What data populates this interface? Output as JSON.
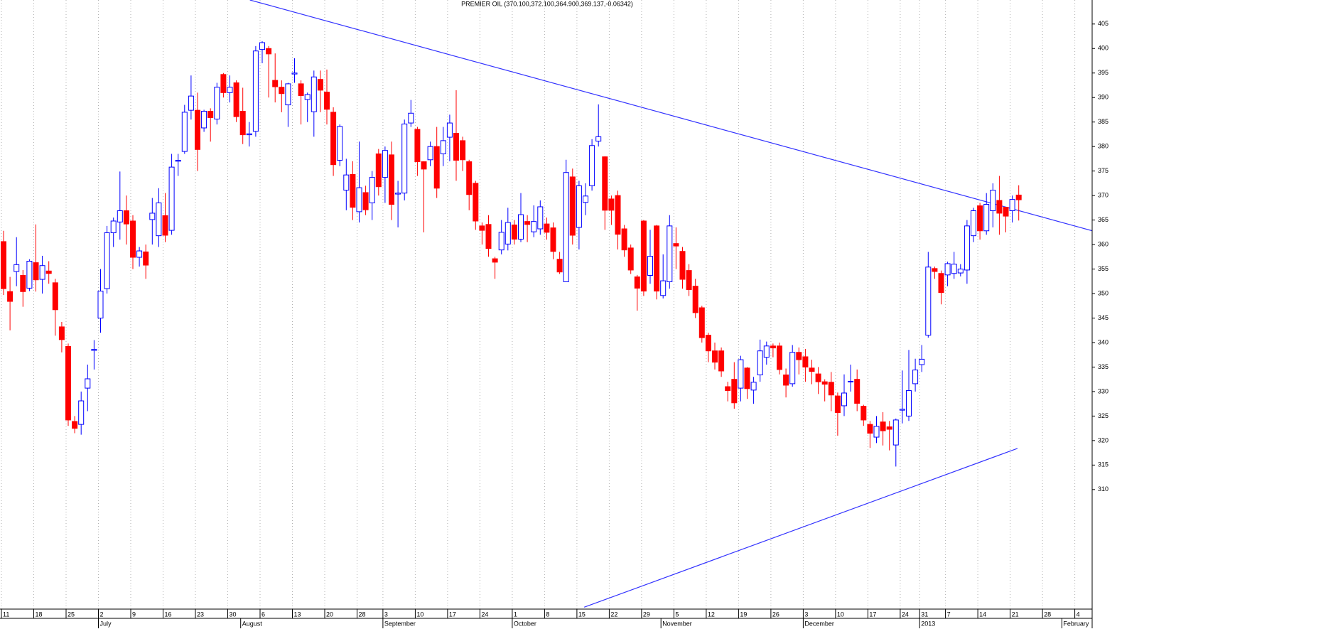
{
  "chart_data": {
    "type": "candlestick",
    "title": "PREMIER OIL (370.100,372.100,364.900,369.137,-0.06342)",
    "up_color": "#0000ff",
    "down_color": "#ff0000",
    "grid": "x",
    "ylim": [
      285.9,
      409.9
    ],
    "yticks": [
      310,
      315,
      320,
      325,
      330,
      335,
      340,
      345,
      350,
      355,
      360,
      365,
      370,
      375,
      380,
      385,
      390,
      395,
      400,
      405
    ],
    "categories": [
      "11",
      null,
      null,
      null,
      null,
      "18",
      null,
      null,
      null,
      null,
      "25",
      null,
      null,
      null,
      null,
      "2",
      null,
      null,
      null,
      null,
      "9",
      null,
      null,
      null,
      null,
      "16",
      null,
      null,
      null,
      null,
      "23",
      null,
      null,
      null,
      null,
      "30",
      null,
      null,
      null,
      null,
      "6",
      null,
      null,
      null,
      null,
      "13",
      null,
      null,
      null,
      null,
      "20",
      null,
      null,
      null,
      null,
      "28",
      null,
      null,
      null,
      "3",
      null,
      null,
      null,
      null,
      "10",
      null,
      null,
      null,
      null,
      "17",
      null,
      null,
      null,
      null,
      "24",
      null,
      null,
      null,
      null,
      "1",
      null,
      null,
      null,
      null,
      "8",
      null,
      null,
      null,
      null,
      "15",
      null,
      null,
      null,
      null,
      "22",
      null,
      null,
      null,
      null,
      "29",
      null,
      null,
      null,
      null,
      "5",
      null,
      null,
      null,
      null,
      "12",
      null,
      null,
      null,
      null,
      "19",
      null,
      null,
      null,
      null,
      "26",
      null,
      null,
      null,
      null,
      "3",
      null,
      null,
      null,
      null,
      "10",
      null,
      null,
      null,
      null,
      "17",
      null,
      null,
      null,
      null,
      "24",
      null,
      null,
      "31",
      null,
      null,
      null,
      "7",
      null,
      null,
      null,
      null,
      "14",
      null,
      null,
      null,
      null,
      "21",
      null,
      null,
      null,
      null,
      "28",
      null,
      null,
      null,
      null,
      "4",
      null,
      null
    ],
    "months": [
      null,
      null,
      null,
      null,
      null,
      null,
      null,
      null,
      null,
      null,
      null,
      null,
      null,
      null,
      null,
      "July",
      null,
      null,
      null,
      null,
      null,
      null,
      null,
      null,
      null,
      null,
      null,
      null,
      null,
      null,
      null,
      null,
      null,
      null,
      null,
      null,
      null,
      "August",
      null,
      null,
      null,
      null,
      null,
      null,
      null,
      null,
      null,
      null,
      null,
      null,
      null,
      null,
      null,
      null,
      null,
      null,
      null,
      null,
      null,
      "September",
      null,
      null,
      null,
      null,
      null,
      null,
      null,
      null,
      null,
      null,
      null,
      null,
      null,
      null,
      null,
      null,
      null,
      null,
      null,
      "October",
      null,
      null,
      null,
      null,
      null,
      null,
      null,
      null,
      null,
      null,
      null,
      null,
      null,
      null,
      null,
      null,
      null,
      null,
      null,
      null,
      null,
      null,
      "November",
      null,
      null,
      null,
      null,
      null,
      null,
      null,
      null,
      null,
      null,
      null,
      null,
      null,
      null,
      null,
      null,
      null,
      null,
      null,
      null,
      null,
      "December",
      null,
      null,
      null,
      null,
      null,
      null,
      null,
      null,
      null,
      null,
      null,
      null,
      null,
      null,
      null,
      null,
      null,
      "2013",
      null,
      null,
      null,
      null,
      null,
      null,
      null,
      null,
      null,
      null,
      null,
      null,
      null,
      null,
      null,
      null,
      null,
      null,
      null,
      null,
      null,
      "February",
      null,
      null,
      null
    ],
    "ohlc": [
      [
        360.6,
        362.8,
        349.7,
        351
      ],
      [
        350.4,
        353.4,
        342.5,
        348.4
      ],
      [
        354.5,
        361.5,
        351.5,
        355.9
      ],
      [
        353.7,
        354.8,
        347.3,
        350.4
      ],
      [
        351.1,
        357,
        350.5,
        356.6
      ],
      [
        356.3,
        364.1,
        350.4,
        352.8
      ],
      [
        352.9,
        357.7,
        350,
        355.7
      ],
      [
        354.6,
        356.6,
        352,
        354.1
      ],
      [
        352.2,
        353,
        341.4,
        346.7
      ],
      [
        343.2,
        344.2,
        338,
        340.6
      ],
      [
        339.2,
        339.8,
        323,
        324.2
      ],
      [
        323.9,
        325,
        321.5,
        322.5
      ],
      [
        323.3,
        330,
        321.2,
        328.1
      ],
      [
        330.7,
        335.5,
        326,
        332.6
      ],
      [
        338.4,
        340.5,
        334.5,
        338.6
      ],
      [
        345,
        355,
        342,
        350.5
      ],
      [
        351,
        363.8,
        350,
        362.4
      ],
      [
        362.4,
        365.5,
        359.5,
        364.8
      ],
      [
        364.6,
        374.9,
        361,
        366.9
      ],
      [
        366.9,
        370,
        360,
        364.2
      ],
      [
        364.8,
        366,
        355,
        357.4
      ],
      [
        357.4,
        359.5,
        355.5,
        358.7
      ],
      [
        358.5,
        360,
        353,
        355.8
      ],
      [
        365.1,
        369.5,
        360,
        366.4
      ],
      [
        361.8,
        371.5,
        359.5,
        368.5
      ],
      [
        365.9,
        370.5,
        360.5,
        361.9
      ],
      [
        362.9,
        378.5,
        362,
        375.8
      ],
      [
        377,
        378.5,
        374,
        377.2
      ],
      [
        379,
        388.5,
        378.5,
        387
      ],
      [
        387.4,
        394.5,
        385.5,
        390.3
      ],
      [
        387.4,
        391,
        375,
        379.4
      ],
      [
        383.8,
        387.5,
        383,
        387.2
      ],
      [
        387.2,
        387.8,
        381,
        385.9
      ],
      [
        385.6,
        393,
        384.5,
        392.1
      ],
      [
        394.7,
        395,
        390,
        391
      ],
      [
        391,
        394.5,
        389,
        392.1
      ],
      [
        393,
        393.5,
        385,
        386.1
      ],
      [
        387.2,
        392,
        380.5,
        382.4
      ],
      [
        382.4,
        385,
        380,
        382.6
      ],
      [
        383.1,
        400.5,
        382,
        399.5
      ],
      [
        399.8,
        401.5,
        397,
        401.2
      ],
      [
        400,
        400.5,
        390,
        398.9
      ],
      [
        393.5,
        399,
        389,
        392.2
      ],
      [
        392.1,
        393.5,
        387,
        390.8
      ],
      [
        388.5,
        393,
        384,
        392.8
      ],
      [
        394.8,
        398,
        393,
        395
      ],
      [
        392.8,
        393.5,
        384.5,
        390.4
      ],
      [
        389.6,
        391,
        385,
        390.6
      ],
      [
        387.1,
        395.5,
        382,
        394.2
      ],
      [
        393.7,
        395.5,
        387,
        391.5
      ],
      [
        391.1,
        395.7,
        384.5,
        387.6
      ],
      [
        387,
        388,
        374,
        376.3
      ],
      [
        377.2,
        384.5,
        376,
        384.1
      ],
      [
        371.1,
        377.5,
        367,
        374.2
      ],
      [
        374.3,
        377,
        365,
        367.6
      ],
      [
        366.7,
        381,
        364.5,
        371.6
      ],
      [
        370.6,
        372,
        366,
        367.1
      ],
      [
        368.5,
        375,
        365,
        373.7
      ],
      [
        378.5,
        379.5,
        370,
        371.8
      ],
      [
        373.7,
        380,
        368.5,
        379.2
      ],
      [
        378.3,
        381,
        365,
        368.2
      ],
      [
        370.3,
        373,
        363.5,
        370.5
      ],
      [
        370.5,
        385.5,
        369,
        384.6
      ],
      [
        384.8,
        389.5,
        384,
        386.8
      ],
      [
        383.5,
        384,
        374,
        376.9
      ],
      [
        376.9,
        377,
        362.5,
        375.4
      ],
      [
        377.3,
        381,
        376,
        380
      ],
      [
        380,
        384,
        369.5,
        371.5
      ],
      [
        378.5,
        384,
        376,
        381.2
      ],
      [
        381.9,
        386.5,
        377,
        384.8
      ],
      [
        382.7,
        391.5,
        373,
        377.2
      ],
      [
        381.2,
        382,
        375,
        377.3
      ],
      [
        376.9,
        377.3,
        367,
        370.2
      ],
      [
        372.5,
        373,
        363,
        364.8
      ],
      [
        363.8,
        364.5,
        360,
        362.9
      ],
      [
        364.1,
        366,
        357.5,
        359.2
      ],
      [
        357.1,
        357.5,
        353,
        356.4
      ],
      [
        358.9,
        365,
        358,
        362.5
      ],
      [
        360.1,
        367.5,
        358.8,
        364.5
      ],
      [
        364,
        365,
        360,
        361.1
      ],
      [
        361.1,
        370.5,
        360.5,
        366.1
      ],
      [
        364.7,
        366,
        360.5,
        364.1
      ],
      [
        362.6,
        368,
        361.5,
        364.7
      ],
      [
        363.2,
        369,
        362,
        367.7
      ],
      [
        364.2,
        365.5,
        361,
        362.5
      ],
      [
        363.4,
        364.5,
        357,
        358.6
      ],
      [
        357,
        358.5,
        354,
        354.4
      ],
      [
        352.4,
        377.3,
        352.4,
        374.7
      ],
      [
        373.8,
        375.5,
        360,
        361.9
      ],
      [
        363.5,
        373,
        359,
        372
      ],
      [
        368.6,
        372.5,
        366,
        369.9
      ],
      [
        372,
        381.5,
        371,
        380.2
      ],
      [
        381.1,
        388.6,
        380,
        382
      ],
      [
        377.9,
        378,
        363,
        367
      ],
      [
        369.3,
        370,
        364,
        367
      ],
      [
        370,
        371,
        359,
        362.1
      ],
      [
        363.2,
        364,
        357.5,
        358.9
      ],
      [
        359.3,
        360,
        354,
        354.8
      ],
      [
        353.4,
        353.8,
        346.5,
        351.1
      ],
      [
        364.8,
        365,
        349.5,
        350.5
      ],
      [
        353.7,
        363,
        352,
        357.6
      ],
      [
        363.8,
        364,
        348.8,
        350.5
      ],
      [
        349.6,
        358,
        349,
        352.6
      ],
      [
        352.4,
        366,
        351,
        363.8
      ],
      [
        360.2,
        363.5,
        355,
        359.7
      ],
      [
        358.6,
        359.5,
        351,
        352.9
      ],
      [
        354.7,
        356,
        349.5,
        350.8
      ],
      [
        351.5,
        353,
        345,
        346.1
      ],
      [
        347.1,
        347.5,
        340,
        341
      ],
      [
        341.5,
        342,
        336,
        338.3
      ],
      [
        338.3,
        340,
        334.5,
        336
      ],
      [
        338.3,
        339,
        333,
        334.2
      ],
      [
        331,
        332,
        328,
        330.2
      ],
      [
        332.5,
        336,
        326.5,
        327.7
      ],
      [
        330.7,
        337.3,
        328,
        336.5
      ],
      [
        334.8,
        335,
        328.5,
        330.6
      ],
      [
        330.3,
        333,
        327.5,
        331.9
      ],
      [
        333.4,
        340.6,
        332,
        338.3
      ],
      [
        337,
        340.2,
        335.5,
        339.3
      ],
      [
        339.3,
        339.8,
        337,
        338.9
      ],
      [
        339.3,
        340,
        333.5,
        334.5
      ],
      [
        333.4,
        334.7,
        328.8,
        331.3
      ],
      [
        331.6,
        339.5,
        331,
        338
      ],
      [
        338,
        339,
        333.5,
        336.5
      ],
      [
        337.1,
        338.7,
        332,
        335
      ],
      [
        334.8,
        336.5,
        331.5,
        334.1
      ],
      [
        333.6,
        335,
        329.5,
        332
      ],
      [
        332,
        332.5,
        328,
        331.5
      ],
      [
        331.9,
        334,
        326,
        329.3
      ],
      [
        329.1,
        329.8,
        321,
        325.7
      ],
      [
        327.1,
        333.5,
        325,
        329.7
      ],
      [
        332,
        335.5,
        330,
        332.1
      ],
      [
        332.5,
        334.5,
        326,
        327.6
      ],
      [
        327,
        327.3,
        323,
        324.2
      ],
      [
        323.3,
        324,
        318.5,
        321.5
      ],
      [
        320.7,
        325,
        319.5,
        322.9
      ],
      [
        323.8,
        325.8,
        319,
        322
      ],
      [
        322.8,
        324,
        318,
        322.3
      ],
      [
        319.1,
        324.5,
        314.7,
        324.2
      ],
      [
        326.2,
        334.3,
        323.5,
        326.4
      ],
      [
        325,
        338.5,
        324,
        330.2
      ],
      [
        331.6,
        336.7,
        330,
        334.4
      ],
      [
        335.5,
        339.5,
        334,
        336.6
      ],
      [
        341.5,
        358.5,
        341,
        355.4
      ],
      [
        355.1,
        355.5,
        353,
        354.5
      ],
      [
        354.1,
        354.7,
        347.8,
        350.2
      ],
      [
        353.8,
        356.5,
        351.5,
        356.1
      ],
      [
        354.1,
        358.5,
        353,
        356
      ],
      [
        354.2,
        356,
        353.5,
        355
      ],
      [
        354.8,
        365,
        352,
        363.8
      ],
      [
        361.8,
        367.5,
        360.5,
        366.9
      ],
      [
        367.9,
        368.5,
        361,
        362.8
      ],
      [
        362.8,
        370.5,
        362,
        368.2
      ],
      [
        366.9,
        372.5,
        363.5,
        371.1
      ],
      [
        369,
        374,
        362,
        366.4
      ],
      [
        367.6,
        367.7,
        362.5,
        365.8
      ],
      [
        366.9,
        370,
        364.5,
        369.2
      ],
      [
        370.1,
        372.1,
        364.9,
        369.137
      ],
      null,
      null,
      null,
      null,
      null,
      null,
      null,
      null,
      null,
      null,
      null
    ],
    "trendlines": [
      {
        "color": "#3333ff",
        "x": [
          38.1,
          168.4
        ],
        "y": [
          409.9,
          362.8
        ]
      },
      {
        "color": "#3333ff",
        "x": [
          89.8,
          156.8
        ],
        "y": [
          286.0,
          318.4
        ]
      }
    ]
  }
}
